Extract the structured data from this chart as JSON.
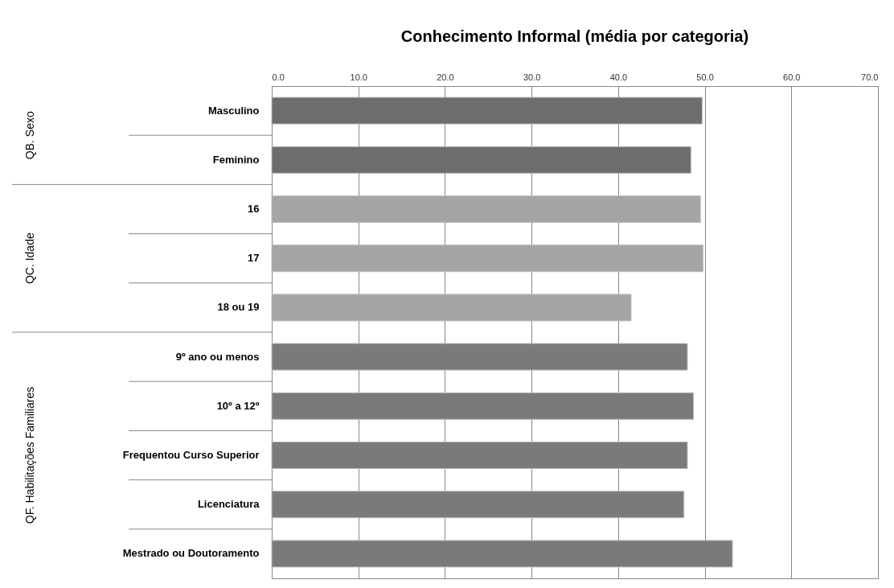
{
  "chart_data": {
    "type": "bar",
    "orientation": "horizontal",
    "title": "Conhecimento Informal (média por categoria)",
    "categories": [
      "Masculino",
      "Feminino",
      "16",
      "17",
      "18 ou 19",
      "9º ano ou menos",
      "10º a 12º",
      "Frequentou Curso Superior",
      "Licenciatura",
      "Mestrado ou Doutoramento"
    ],
    "values": [
      49.7,
      48.4,
      49.5,
      49.8,
      41.5,
      48.0,
      48.7,
      48.0,
      47.6,
      53.2
    ],
    "colors": [
      "#6d6d6d",
      "#6d6d6d",
      "#a5a5a5",
      "#a5a5a5",
      "#a5a5a5",
      "#7a7a7a",
      "#7a7a7a",
      "#7a7a7a",
      "#7a7a7a",
      "#7a7a7a"
    ],
    "xlim": [
      0,
      70
    ],
    "xticks": [
      {
        "value": 0,
        "label": "0.0"
      },
      {
        "value": 10,
        "label": "10.0"
      },
      {
        "value": 20,
        "label": "20.0"
      },
      {
        "value": 30,
        "label": "30.0"
      },
      {
        "value": 40,
        "label": "40.0"
      },
      {
        "value": 50,
        "label": "50.0"
      },
      {
        "value": 60,
        "label": "60.0"
      },
      {
        "value": 70,
        "label": "70.0"
      }
    ],
    "grid": "x",
    "annotations": [
      "QB. Sexo",
      "QC. Idade",
      "QF. Habilitações Familiares"
    ]
  }
}
